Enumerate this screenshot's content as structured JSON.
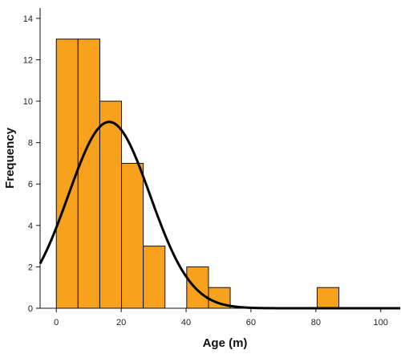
{
  "chart_data": {
    "type": "bar",
    "subtype": "histogram-with-normal-curve",
    "xlabel": "Age (m)",
    "ylabel": "Frequency",
    "xlim": [
      -5,
      106
    ],
    "ylim": [
      0,
      14.5
    ],
    "x_ticks": [
      0,
      20,
      40,
      60,
      80,
      100
    ],
    "y_ticks": [
      0,
      2,
      4,
      6,
      8,
      10,
      12,
      14
    ],
    "bin_width": 6.7,
    "bins": [
      {
        "start": 0,
        "end": 6.7,
        "count": 13
      },
      {
        "start": 6.7,
        "end": 13.4,
        "count": 13
      },
      {
        "start": 13.4,
        "end": 20.1,
        "count": 10
      },
      {
        "start": 20.1,
        "end": 26.8,
        "count": 7
      },
      {
        "start": 26.8,
        "end": 33.5,
        "count": 3
      },
      {
        "start": 40.2,
        "end": 46.9,
        "count": 2
      },
      {
        "start": 46.9,
        "end": 53.6,
        "count": 1
      },
      {
        "start": 80.4,
        "end": 87.1,
        "count": 1
      }
    ],
    "normal_curve": {
      "mean": 16.3,
      "sd": 12.6,
      "peak": 9.0
    },
    "grid": false,
    "legend": "none",
    "colors": {
      "bar_fill": "#f7a11c",
      "bar_edge": "#111111",
      "curve": "#000000",
      "axis": "#111111"
    }
  }
}
